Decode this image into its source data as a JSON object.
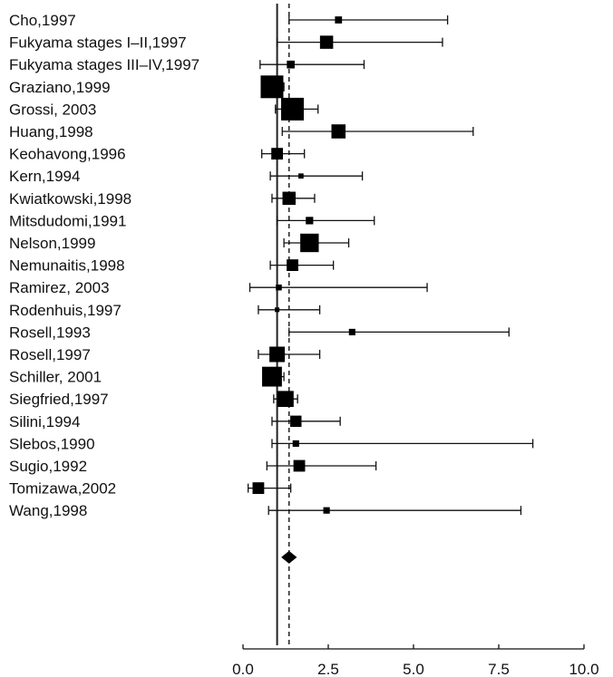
{
  "chart_data": {
    "type": "forest",
    "title": "",
    "xlabel": "",
    "ylabel": "",
    "xlim": [
      0,
      10
    ],
    "x_ticks": [
      "0.0",
      "2.5",
      "5.0",
      "7.5",
      "10.0"
    ],
    "x_tick_values": [
      0,
      2.5,
      5,
      7.5,
      10
    ],
    "reference_line": 1,
    "pooled_estimate": 1.35,
    "studies": [
      {
        "label": "Cho,1997",
        "estimate": 2.8,
        "ci": [
          1.35,
          6.0
        ],
        "weight": 0.18
      },
      {
        "label": "Fukyama stages I–II,1997",
        "estimate": 2.45,
        "ci": [
          1.0,
          5.85
        ],
        "weight": 0.5
      },
      {
        "label": "Fukyama stages III–IV,1997",
        "estimate": 1.4,
        "ci": [
          0.5,
          3.55
        ],
        "weight": 0.22
      },
      {
        "label": "Graziano,1999",
        "estimate": 0.85,
        "ci": [
          0.6,
          1.2
        ],
        "weight": 1.0
      },
      {
        "label": "Grossi, 2003",
        "estimate": 1.45,
        "ci": [
          0.95,
          2.2
        ],
        "weight": 1.0
      },
      {
        "label": "Huang,1998",
        "estimate": 2.8,
        "ci": [
          1.15,
          6.75
        ],
        "weight": 0.55
      },
      {
        "label": "Keohavong,1996",
        "estimate": 1.0,
        "ci": [
          0.55,
          1.8
        ],
        "weight": 0.42
      },
      {
        "label": "Kern,1994",
        "estimate": 1.7,
        "ci": [
          0.8,
          3.5
        ],
        "weight": 0.08
      },
      {
        "label": "Kwiatkowski,1998",
        "estimate": 1.35,
        "ci": [
          0.85,
          2.1
        ],
        "weight": 0.5
      },
      {
        "label": "Mitsdudomi,1991",
        "estimate": 1.95,
        "ci": [
          1.0,
          3.85
        ],
        "weight": 0.2
      },
      {
        "label": "Nelson,1999",
        "estimate": 1.95,
        "ci": [
          1.2,
          3.1
        ],
        "weight": 0.78
      },
      {
        "label": "Nemunaitis,1998",
        "estimate": 1.45,
        "ci": [
          0.8,
          2.65
        ],
        "weight": 0.42
      },
      {
        "label": "Ramirez, 2003",
        "estimate": 1.05,
        "ci": [
          0.2,
          5.4
        ],
        "weight": 0.12
      },
      {
        "label": "Rodenhuis,1997",
        "estimate": 1.0,
        "ci": [
          0.45,
          2.25
        ],
        "weight": 0.05
      },
      {
        "label": "Rosell,1993",
        "estimate": 3.2,
        "ci": [
          1.35,
          7.8
        ],
        "weight": 0.15
      },
      {
        "label": "Rosell,1997",
        "estimate": 1.0,
        "ci": [
          0.45,
          2.25
        ],
        "weight": 0.62
      },
      {
        "label": "Schiller, 2001",
        "estimate": 0.85,
        "ci": [
          0.6,
          1.2
        ],
        "weight": 0.85
      },
      {
        "label": "Siegfried,1997",
        "estimate": 1.25,
        "ci": [
          0.9,
          1.6
        ],
        "weight": 0.65
      },
      {
        "label": "Silini,1994",
        "estimate": 1.55,
        "ci": [
          0.85,
          2.85
        ],
        "weight": 0.4
      },
      {
        "label": "Slebos,1990",
        "estimate": 1.55,
        "ci": [
          0.85,
          8.5
        ],
        "weight": 0.15
      },
      {
        "label": "Sugio,1992",
        "estimate": 1.65,
        "ci": [
          0.7,
          3.9
        ],
        "weight": 0.42
      },
      {
        "label": "Tomizawa,2002",
        "estimate": 0.45,
        "ci": [
          0.15,
          1.4
        ],
        "weight": 0.42
      },
      {
        "label": "Wang,1998",
        "estimate": 2.45,
        "ci": [
          0.75,
          8.15
        ],
        "weight": 0.15
      }
    ],
    "overall": {
      "estimate": 1.35,
      "ci": [
        1.12,
        1.58
      ]
    }
  }
}
